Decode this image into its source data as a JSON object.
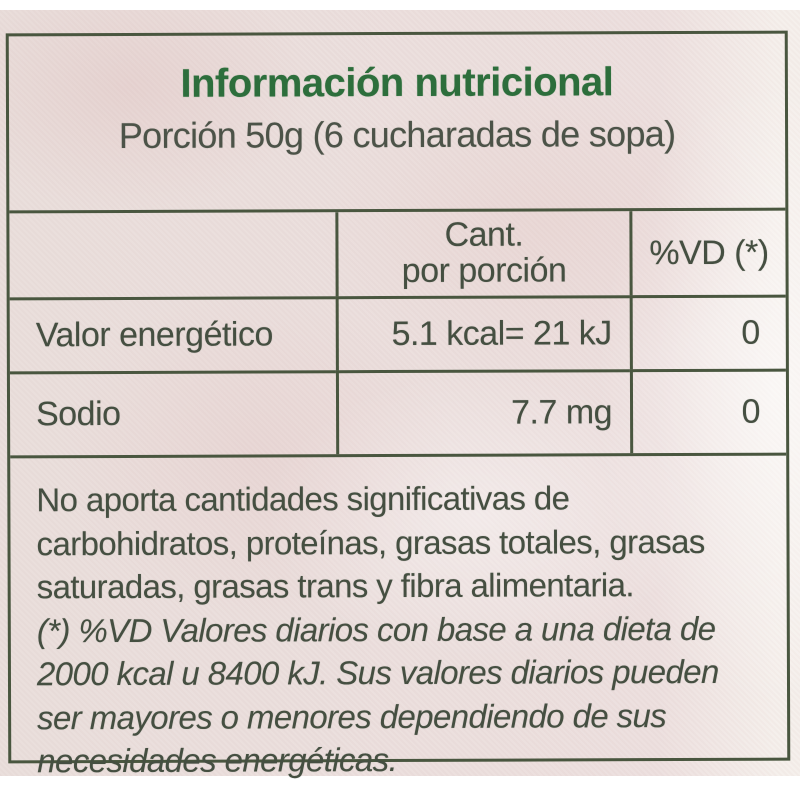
{
  "label": {
    "title": "Información nutricional",
    "subtitle": "Porción 50g (6 cucharadas de sopa)",
    "table": {
      "header": {
        "nutrient_col": "",
        "amount_col": "Cant.\npor porción",
        "dv_col": "%VD (*)"
      },
      "rows": [
        {
          "name": "Valor energético",
          "amount": "5.1 kcal= 21 kJ",
          "dv": "0"
        },
        {
          "name": "Sodio",
          "amount": "7.7 mg",
          "dv": "0"
        }
      ]
    },
    "notes": {
      "no_significant": "No aporta cantidades significativas de\ncarbohidratos, proteínas, grasas totales, grasas\nsaturadas, grasas trans y fibra alimentaria.",
      "dv_footnote": "(*) %VD Valores diarios con base a una dieta de\n2000 kcal u 8400 kJ. Sus valores diarios pueden\nser mayores o menores dependiendo de sus\nnecesidades energéticas."
    },
    "colors": {
      "title_green": "#2d6e3c",
      "rule_olive": "#49563f",
      "text_olive_gray": "#454f41",
      "paper_pink": "#ebdfdd"
    }
  }
}
